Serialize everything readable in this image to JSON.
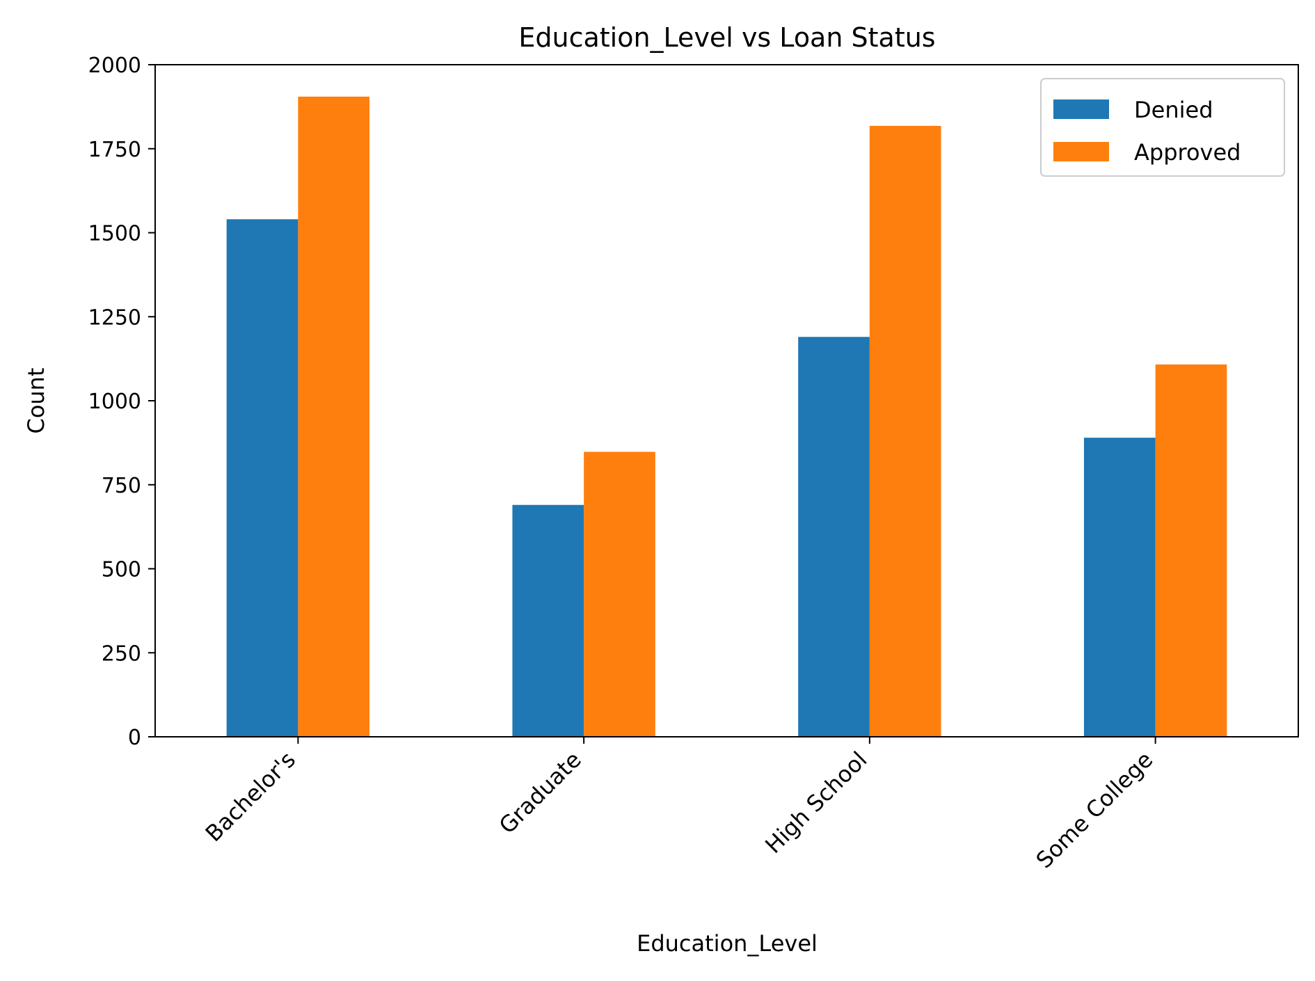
{
  "chart_data": {
    "type": "bar",
    "title": "Education_Level vs Loan Status",
    "xlabel": "Education_Level",
    "ylabel": "Count",
    "categories": [
      "Bachelor's",
      "Graduate",
      "High School",
      "Some College"
    ],
    "series": [
      {
        "name": "Denied",
        "color": "#1f77b4",
        "values": [
          1540,
          690,
          1190,
          890
        ]
      },
      {
        "name": "Approved",
        "color": "#ff7f0e",
        "values": [
          1905,
          848,
          1818,
          1108
        ]
      }
    ],
    "ylim": [
      0,
      2000
    ],
    "yticks": [
      "0",
      "250",
      "500",
      "750",
      "1000",
      "1250",
      "1500",
      "1750",
      "2000"
    ],
    "grid": false,
    "legend_position": "top-right"
  }
}
